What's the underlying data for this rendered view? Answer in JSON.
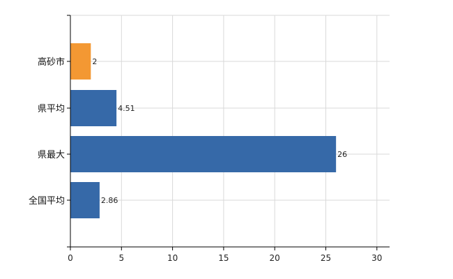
{
  "chart_data": {
    "type": "bar",
    "orientation": "horizontal",
    "categories": [
      "高砂市",
      "県平均",
      "県最大",
      "全国平均"
    ],
    "values": [
      2,
      4.51,
      26,
      2.86
    ],
    "data_labels": [
      "2",
      "4.51",
      "26",
      "2.86"
    ],
    "colors": [
      "#F39833",
      "#3669A8",
      "#3669A8",
      "#3669A8"
    ],
    "xlim": [
      0,
      31
    ],
    "x_ticks": [
      0,
      5,
      10,
      15,
      20,
      25,
      30
    ],
    "x_tick_labels": [
      "0",
      "5",
      "10",
      "15",
      "20",
      "25",
      "30"
    ],
    "grid": true,
    "title": "",
    "xlabel": "",
    "ylabel": ""
  }
}
